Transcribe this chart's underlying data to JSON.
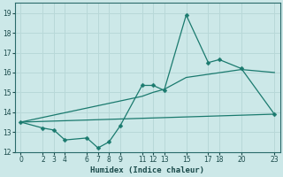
{
  "bg_color": "#cce8e8",
  "grid_color": "#b8d8d8",
  "line_color": "#1a7a6e",
  "xlabel": "Humidex (Indice chaleur)",
  "ylim": [
    12,
    19.5
  ],
  "xlim": [
    -0.5,
    23.5
  ],
  "yticks": [
    12,
    13,
    14,
    15,
    16,
    17,
    18,
    19
  ],
  "xticks": [
    0,
    2,
    3,
    4,
    6,
    7,
    8,
    9,
    11,
    12,
    13,
    15,
    17,
    18,
    20,
    23
  ],
  "line1_x": [
    0,
    2,
    3,
    4,
    6,
    7,
    8,
    9,
    11,
    12,
    13,
    15,
    17,
    18,
    20,
    23
  ],
  "line1_y": [
    13.5,
    13.2,
    13.1,
    12.6,
    12.7,
    12.2,
    12.5,
    13.3,
    15.35,
    15.35,
    15.1,
    18.9,
    16.5,
    16.65,
    16.2,
    13.9
  ],
  "line2_x": [
    0,
    11,
    12,
    13,
    15,
    20,
    23
  ],
  "line2_y": [
    13.5,
    14.8,
    15.0,
    15.15,
    15.75,
    16.15,
    16.0
  ],
  "line3_x": [
    0,
    23
  ],
  "line3_y": [
    13.5,
    13.9
  ],
  "marker_size": 2.5,
  "linewidth": 0.9
}
